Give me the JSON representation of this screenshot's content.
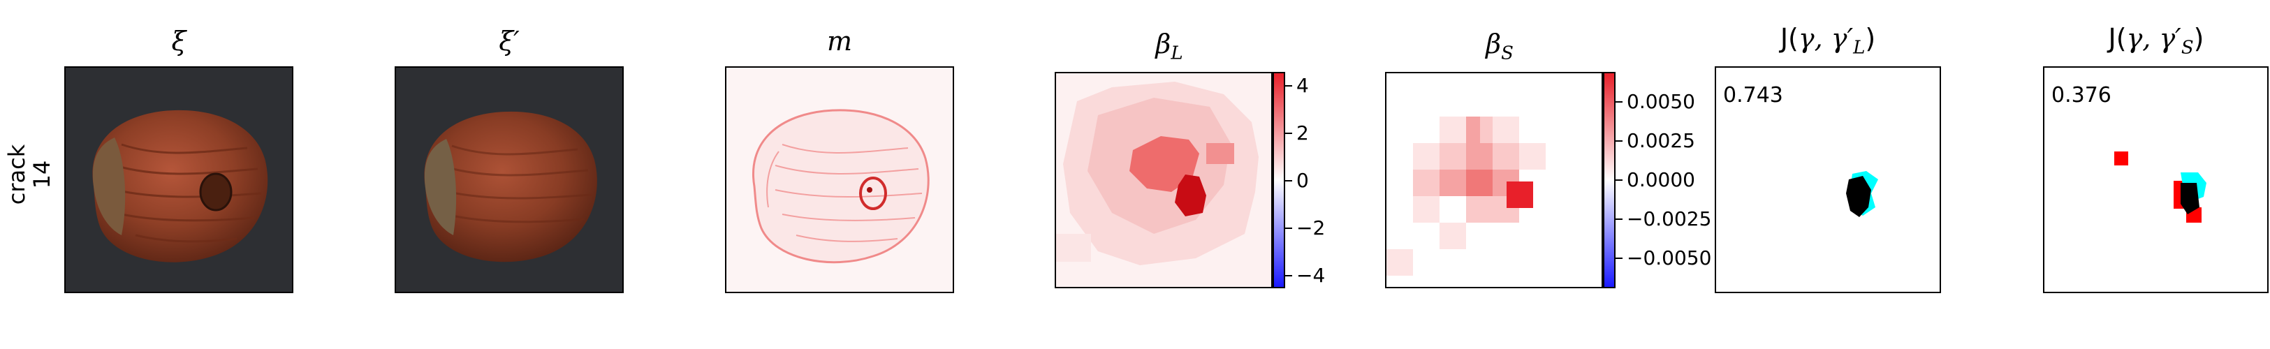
{
  "row_label": {
    "category": "crack",
    "index": "14"
  },
  "panels": {
    "xi": {
      "title": "ξ",
      "image": "hazelnut-photo"
    },
    "xi_prime": {
      "title": "ξ′",
      "image": "hazelnut-photo-reconstructed"
    },
    "m": {
      "title": "m",
      "image": "red-difference-map"
    },
    "beta_L": {
      "title": "β_L",
      "colorbar_ticks": [
        "4",
        "2",
        "0",
        "−2",
        "−4"
      ],
      "colorbar_range": [
        -4.5,
        4.5
      ]
    },
    "beta_S": {
      "title": "β_S",
      "colorbar_ticks": [
        "0.0050",
        "0.0025",
        "0.0000",
        "−0.0025",
        "−0.0050"
      ],
      "colorbar_range": [
        -0.0068,
        0.0068
      ]
    },
    "J_L": {
      "title_prefix": "J(",
      "title_vars": "γ, γ′",
      "title_sub": "L",
      "title_suffix": ")",
      "score": "0.743"
    },
    "J_S": {
      "title_prefix": "J(",
      "title_vars": "γ, γ′",
      "title_sub": "S",
      "title_suffix": ")",
      "score": "0.376"
    }
  },
  "colors": {
    "positive": "#e8202a",
    "negative": "#1a1aff",
    "overlay_cyan": "#00ffff",
    "overlay_black": "#000000",
    "overlay_red": "#ff0000"
  }
}
